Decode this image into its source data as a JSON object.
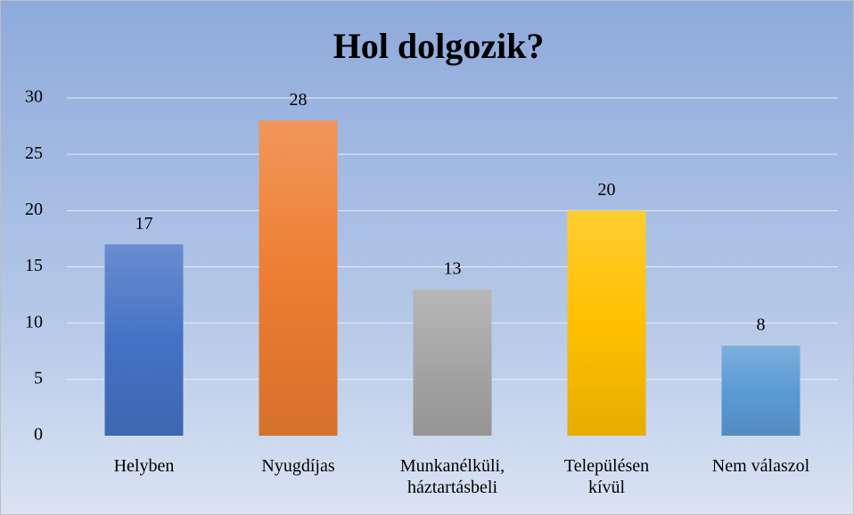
{
  "chart_data": {
    "type": "bar",
    "title": "Hol dolgozik?",
    "categories": [
      "Helyben",
      "Nyugdíjas",
      "Munkanélküli,\nháztartásbeli",
      "Településen\nkívül",
      "Nem válaszol"
    ],
    "values": [
      17,
      28,
      13,
      20,
      8
    ],
    "colors": [
      "#4472c4",
      "#ed7d31",
      "#a5a5a5",
      "#ffc000",
      "#5b9bd5"
    ],
    "ylim": [
      0,
      30
    ],
    "yticks": [
      0,
      5,
      10,
      15,
      20,
      25,
      30
    ],
    "grid": true
  }
}
